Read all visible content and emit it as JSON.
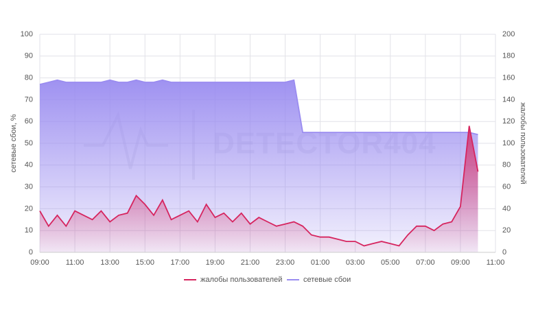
{
  "chart_data": {
    "type": "area",
    "watermark": "DETECTOR404",
    "ylabel": "сетевые сбои, %",
    "y2label": "жалобы пользователей",
    "categories": [
      "09:00",
      null,
      null,
      null,
      "11:00",
      null,
      null,
      null,
      "13:00",
      null,
      null,
      null,
      "15:00",
      null,
      null,
      null,
      "17:00",
      null,
      null,
      null,
      "19:00",
      null,
      null,
      null,
      "21:00",
      null,
      null,
      null,
      "23:00",
      null,
      null,
      null,
      "01:00",
      null,
      null,
      null,
      "03:00",
      null,
      null,
      null,
      "05:00",
      null,
      null,
      null,
      "07:00",
      null,
      null,
      null,
      "09:00",
      null,
      null,
      null,
      "11:00"
    ],
    "series": [
      {
        "name": "жалобы пользователей",
        "color": "#d6245e",
        "axis": "y2",
        "values": [
          38,
          24,
          34,
          24,
          38,
          34,
          30,
          38,
          28,
          34,
          36,
          52,
          44,
          34,
          48,
          30,
          34,
          38,
          28,
          44,
          32,
          36,
          28,
          36,
          26,
          32,
          28,
          24,
          26,
          28,
          24,
          16,
          14,
          14,
          12,
          10,
          10,
          6,
          8,
          10,
          8,
          6,
          16,
          24,
          24,
          20,
          26,
          28,
          42,
          116,
          74,
          null,
          null
        ]
      },
      {
        "name": "сетевые сбои",
        "color": "#9a8cf0",
        "axis": "y",
        "values": [
          77,
          78,
          79,
          78,
          78,
          78,
          78,
          78,
          79,
          78,
          78,
          79,
          78,
          78,
          79,
          78,
          78,
          78,
          78,
          78,
          78,
          78,
          78,
          78,
          78,
          78,
          78,
          78,
          78,
          79,
          55,
          55,
          55,
          55,
          55,
          55,
          55,
          55,
          55,
          55,
          55,
          55,
          55,
          55,
          55,
          55,
          55,
          55,
          55,
          55,
          54,
          null,
          null
        ]
      }
    ],
    "ylim": [
      0,
      100
    ],
    "yticks": [
      0,
      10,
      20,
      30,
      40,
      50,
      60,
      70,
      80,
      90,
      100
    ],
    "y2lim": [
      0,
      200
    ],
    "y2ticks": [
      0,
      20,
      40,
      60,
      80,
      100,
      120,
      140,
      160,
      180,
      200
    ],
    "grid": true,
    "legend": "bottom"
  }
}
